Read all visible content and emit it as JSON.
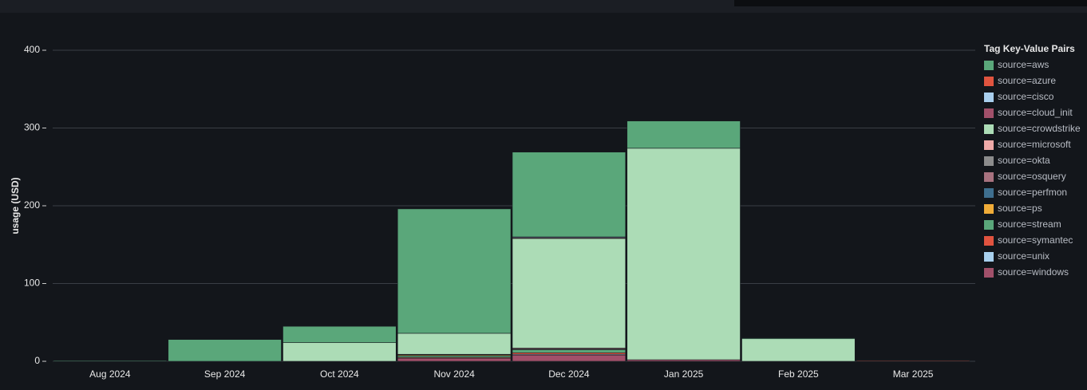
{
  "chart_data": {
    "type": "stacked_bar",
    "y_label": "usage (USD)",
    "legend_title": "Tag Key-Value Pairs",
    "categories": [
      "Aug 2024",
      "Sep 2024",
      "Oct 2024",
      "Nov 2024",
      "Dec 2024",
      "Jan 2025",
      "Feb 2025",
      "Mar 2025"
    ],
    "ylim": [
      0,
      420
    ],
    "yticks": [
      0,
      100,
      200,
      300,
      400
    ],
    "grid": true,
    "series": [
      {
        "name": "source=aws",
        "color": "#5aa77a",
        "values": [
          1,
          28,
          21,
          160,
          109,
          35,
          1,
          0
        ]
      },
      {
        "name": "source=azure",
        "color": "#e0543f",
        "values": [
          0,
          0,
          0,
          0,
          0,
          0,
          0,
          0.5
        ]
      },
      {
        "name": "source=cisco",
        "color": "#a9cfee",
        "values": [
          0,
          0,
          0,
          0,
          1,
          0,
          0,
          0
        ]
      },
      {
        "name": "source=cloud_init",
        "color": "#a1506a",
        "values": [
          0,
          0,
          0,
          0,
          1,
          0,
          0,
          0
        ]
      },
      {
        "name": "source=crowdstrike",
        "color": "#acdcb6",
        "values": [
          0,
          0,
          24,
          27,
          141,
          272,
          29,
          0
        ]
      },
      {
        "name": "source=microsoft",
        "color": "#efaaa8",
        "values": [
          0,
          0,
          0,
          0.5,
          1,
          0,
          0,
          0
        ]
      },
      {
        "name": "source=okta",
        "color": "#8c8c8c",
        "values": [
          0,
          0,
          0,
          0,
          0,
          0,
          0,
          0
        ]
      },
      {
        "name": "source=osquery",
        "color": "#a8727f",
        "values": [
          0,
          0,
          0,
          0,
          1,
          0,
          0,
          0
        ]
      },
      {
        "name": "source=perfmon",
        "color": "#3f6f8f",
        "values": [
          0,
          0,
          0,
          0.5,
          0,
          0,
          0,
          0
        ]
      },
      {
        "name": "source=ps",
        "color": "#f0ac38",
        "values": [
          0,
          0,
          0,
          1,
          0,
          0,
          0,
          0
        ]
      },
      {
        "name": "source=stream",
        "color": "#5aa77a",
        "values": [
          0,
          0,
          0,
          2,
          4,
          0,
          0,
          0
        ]
      },
      {
        "name": "source=symantec",
        "color": "#e0533f",
        "values": [
          0,
          0,
          0,
          1,
          2,
          0,
          0,
          1
        ]
      },
      {
        "name": "source=unix",
        "color": "#a8d0ee",
        "values": [
          0,
          0,
          0,
          0,
          1,
          0,
          0,
          0
        ]
      },
      {
        "name": "source=windows",
        "color": "#a1506a",
        "values": [
          0,
          0,
          0,
          4,
          8,
          2,
          0,
          0
        ]
      }
    ]
  }
}
